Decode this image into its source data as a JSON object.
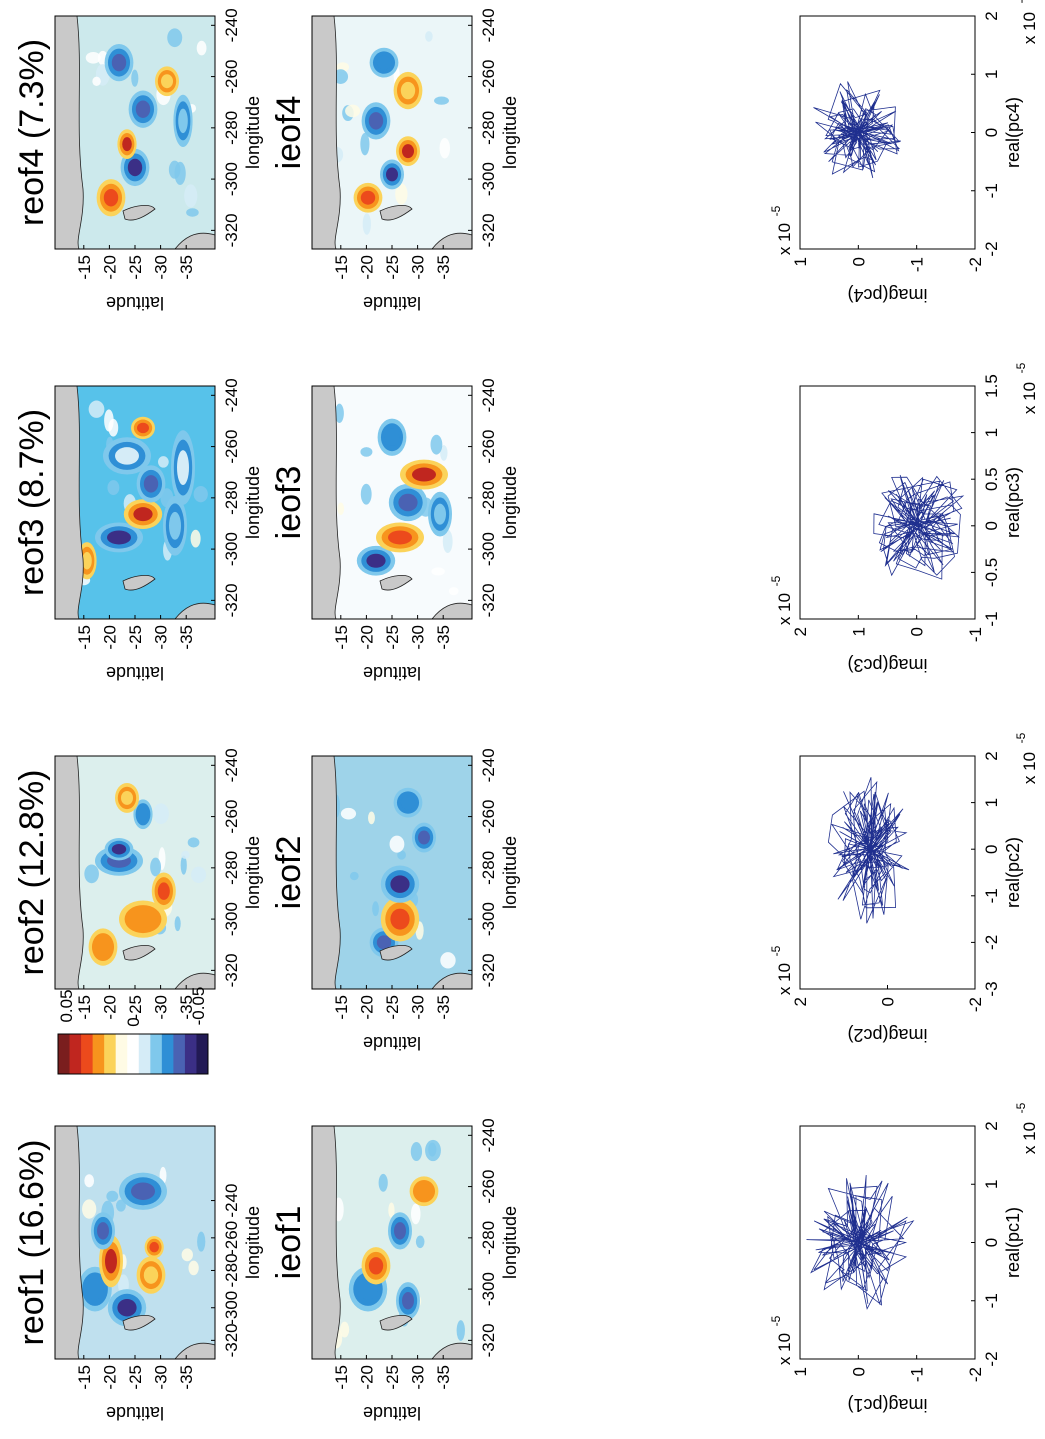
{
  "colorbar": {
    "max_label": "0.05",
    "mid_label": "0",
    "min_label": "-0.05",
    "colors": [
      "#7a1e1e",
      "#c0261f",
      "#ec4a1c",
      "#f7941d",
      "#fbd35a",
      "#fffbe5",
      "#ffffff",
      "#d5ecf7",
      "#7fc8ec",
      "#2f8fd6",
      "#4a62b3",
      "#3b2f86",
      "#221a55"
    ]
  },
  "maps": [
    {
      "id": "reof1",
      "title": "reof1  (16.6%)",
      "xlabel": "longitude",
      "ylabel": "latitude",
      "xticks": [
        "-320",
        "-300",
        "-280",
        "-260",
        "-240"
      ],
      "yticks": [
        "-15",
        "-20",
        "-25",
        "-30",
        "-35"
      ],
      "compact_xticks": true,
      "bg": "#bfe0ee"
    },
    {
      "id": "reof2",
      "title": "reof2 (12.8%)",
      "xlabel": "longitude",
      "ylabel": "latitude",
      "xticks": [
        "-320",
        "-300",
        "-280",
        "-260",
        "-240"
      ],
      "yticks": [
        "-15",
        "-20",
        "-25",
        "-30",
        "-35"
      ],
      "bg": "#dcefed"
    },
    {
      "id": "reof3",
      "title": "reof3 (8.7%)",
      "xlabel": "longitude",
      "ylabel": "latitude",
      "xticks": [
        "-320",
        "-300",
        "-280",
        "-260",
        "-240"
      ],
      "yticks": [
        "-15",
        "-20",
        "-25",
        "-30",
        "-35"
      ],
      "bg": "#57c2ea"
    },
    {
      "id": "reof4",
      "title": "reof4 (7.3%)",
      "xlabel": "longitude",
      "ylabel": "latitude",
      "xticks": [
        "-320",
        "-300",
        "-280",
        "-260",
        "-240"
      ],
      "yticks": [
        "-15",
        "-20",
        "-25",
        "-30",
        "-35"
      ],
      "bg": "#cce9ec"
    },
    {
      "id": "ieof1",
      "title": "ieof1",
      "xlabel": "longitude",
      "ylabel": "latitude",
      "xticks": [
        "-320",
        "-300",
        "-280",
        "-260",
        "-240"
      ],
      "yticks": [
        "-15",
        "-20",
        "-25",
        "-30",
        "-35"
      ],
      "bg": "#dcefed"
    },
    {
      "id": "ieof2",
      "title": "ieof2",
      "xlabel": "longitude",
      "ylabel": "latitude",
      "xticks": [
        "-320",
        "-300",
        "-280",
        "-260",
        "-240"
      ],
      "yticks": [
        "-15",
        "-20",
        "-25",
        "-30",
        "-35"
      ],
      "bg": "#9ed3e9"
    },
    {
      "id": "ieof3",
      "title": "ieof3",
      "xlabel": "longitude",
      "ylabel": "latitude",
      "xticks": [
        "-320",
        "-300",
        "-280",
        "-260",
        "-240"
      ],
      "yticks": [
        "-15",
        "-20",
        "-25",
        "-30",
        "-35"
      ],
      "bg": "#f7fbfd"
    },
    {
      "id": "ieof4",
      "title": "ieof4",
      "xlabel": "longitude",
      "ylabel": "latitude",
      "xticks": [
        "-320",
        "-300",
        "-280",
        "-260",
        "-240"
      ],
      "yticks": [
        "-15",
        "-20",
        "-25",
        "-30",
        "-35"
      ],
      "bg": "#ebf6f8"
    }
  ],
  "chart_data": [
    {
      "type": "scatter",
      "title": "",
      "xlabel": "real(pc1)",
      "ylabel": "imag(pc1)",
      "xlim": [
        -2,
        2
      ],
      "ylim": [
        -2,
        1
      ],
      "xticks": [
        "-2",
        "-1",
        "0",
        "1",
        "2"
      ],
      "yticks": [
        "1",
        "0",
        "-1",
        "-2"
      ],
      "x_exponent": "x 10",
      "x_exp_power": "-5",
      "y_exponent": "x 10",
      "y_exp_power": "-5",
      "trajectory_center": [
        0,
        0
      ],
      "trajectory_spread": [
        0.7,
        0.55
      ]
    },
    {
      "type": "scatter",
      "title": "",
      "xlabel": "real(pc2)",
      "ylabel": "imag(pc2)",
      "xlim": [
        -3,
        2
      ],
      "ylim": [
        -3,
        2
      ],
      "xticks": [
        "-3",
        "-2",
        "-1",
        "0",
        "1",
        "2"
      ],
      "yticks": [
        "2",
        "0",
        "-2"
      ],
      "x_exponent": "x 10",
      "x_exp_power": "-5",
      "y_exponent": "x 10",
      "y_exp_power": "-5",
      "trajectory_center": [
        0,
        0
      ],
      "trajectory_spread": [
        0.9,
        0.7
      ]
    },
    {
      "type": "scatter",
      "title": "",
      "xlabel": "real(pc3)",
      "ylabel": "imag(pc3)",
      "xlim": [
        -1,
        1.5
      ],
      "ylim": [
        -1,
        2
      ],
      "xticks": [
        "-1",
        "-0.5",
        "0",
        "0.5",
        "1",
        "1.5"
      ],
      "yticks": [
        "2",
        "1",
        "0",
        "-1"
      ],
      "x_exponent": "x 10",
      "x_exp_power": "-5",
      "y_exponent": "x 10",
      "y_exp_power": "-5",
      "trajectory_center": [
        0,
        0
      ],
      "trajectory_spread": [
        0.35,
        0.5
      ]
    },
    {
      "type": "scatter",
      "title": "",
      "xlabel": "real(pc4)",
      "ylabel": "imag(pc4)",
      "xlim": [
        -2,
        2
      ],
      "ylim": [
        -2,
        1
      ],
      "xticks": [
        "-2",
        "-1",
        "0",
        "1",
        "2"
      ],
      "yticks": [
        "1",
        "0",
        "-1",
        "-2"
      ],
      "x_exponent": "x 10",
      "x_exp_power": "-5",
      "y_exponent": "x 10",
      "y_exp_power": "-5",
      "trajectory_center": [
        0,
        0
      ],
      "trajectory_spread": [
        0.5,
        0.45
      ]
    }
  ]
}
